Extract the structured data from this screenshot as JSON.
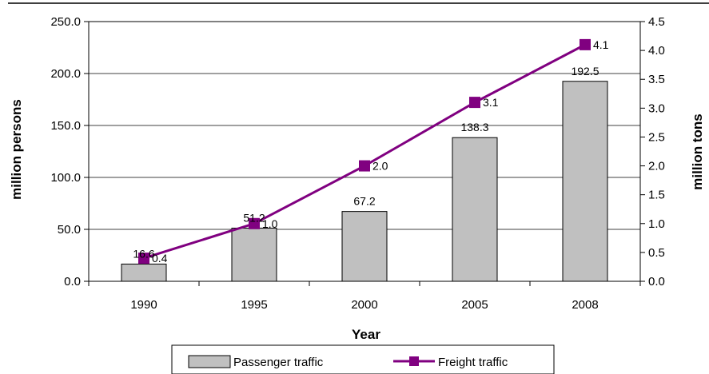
{
  "chart_data": {
    "type": "bar+line",
    "categories": [
      "1990",
      "1995",
      "2000",
      "2005",
      "2008"
    ],
    "series": [
      {
        "name": "Passenger traffic",
        "type": "bar",
        "axis": "left",
        "values": [
          16.6,
          51.2,
          67.2,
          138.3,
          192.5
        ],
        "labels": [
          "16.6",
          "51.2",
          "67.2",
          "138.3",
          "192.5"
        ],
        "color": "#c0c0c0"
      },
      {
        "name": "Freight traffic",
        "type": "line",
        "axis": "right",
        "values": [
          0.4,
          1.0,
          2.0,
          3.1,
          4.1
        ],
        "labels": [
          "0.4",
          "1.0",
          "2.0",
          "3.1",
          "4.1"
        ],
        "color": "#800080"
      }
    ],
    "xlabel": "Year",
    "ylabel": "million persons",
    "y2label": "million tons",
    "ylim": [
      0,
      250
    ],
    "y2lim": [
      0,
      4.5
    ],
    "yticks": [
      "0.0",
      "50.0",
      "100.0",
      "150.0",
      "200.0",
      "250.0"
    ],
    "y2ticks": [
      "0.0",
      "0.5",
      "1.0",
      "1.5",
      "2.0",
      "2.5",
      "3.0",
      "3.5",
      "4.0",
      "4.5"
    ],
    "grid": true,
    "legend": "bottom"
  }
}
